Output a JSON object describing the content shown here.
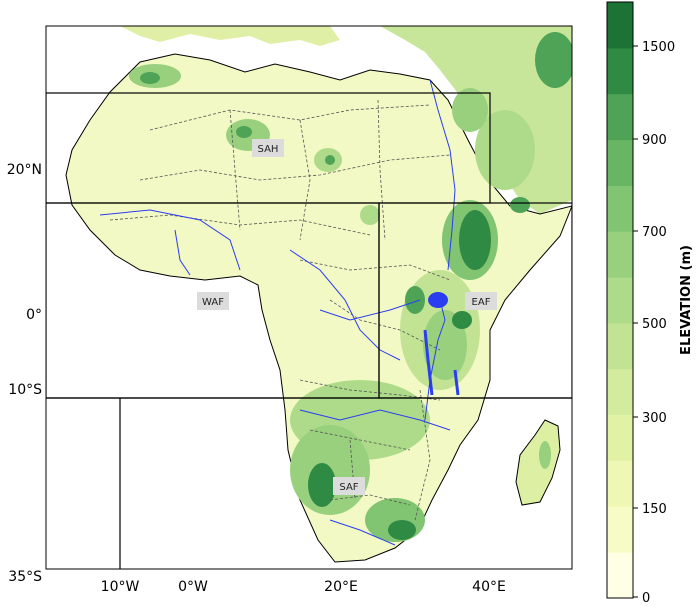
{
  "map": {
    "lat_ticks": [
      {
        "label": "20°N",
        "value": 20
      },
      {
        "label": "0°",
        "value": 0
      },
      {
        "label": "10°S",
        "value": -10
      },
      {
        "label": "35°S",
        "value": -35
      }
    ],
    "lon_ticks": [
      {
        "label": "10°W",
        "value": -10
      },
      {
        "label": "0°W",
        "value": 0
      },
      {
        "label": "20°E",
        "value": 20
      },
      {
        "label": "40°E",
        "value": 40
      }
    ],
    "regions": [
      {
        "label": "SAH"
      },
      {
        "label": "WAF"
      },
      {
        "label": "EAF"
      },
      {
        "label": "SAF"
      }
    ]
  },
  "colorbar": {
    "label": "ELEVATION (m)",
    "ticks": [
      "0",
      "150",
      "300",
      "500",
      "700",
      "900",
      "1500"
    ],
    "colors": [
      "#ffffe5",
      "#f7fcc7",
      "#eef8b4",
      "#e2f2a5",
      "#d3eb9c",
      "#c2e394",
      "#aedb8a",
      "#98d07e",
      "#81c471",
      "#68b563",
      "#4ea356",
      "#2f8a44",
      "#1d7236"
    ]
  },
  "colors": {
    "land": "#f3f9c4",
    "ocean": "#ffffff",
    "rivers": "#2a3df0",
    "borders": "#555555",
    "highland": "#7cc06a",
    "peak": "#2a8a44"
  }
}
